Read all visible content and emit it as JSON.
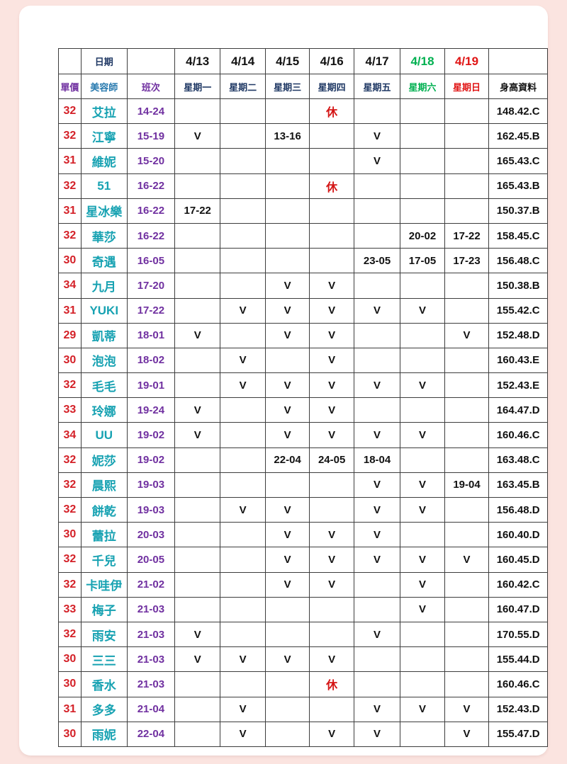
{
  "colors": {
    "page_background": "#fbe4e0",
    "card_background": "#ffffff",
    "grid_border": "#3d3d3d",
    "price_red": "#d42128",
    "name_teal": "#17a2b2",
    "shift_purple": "#7030a0",
    "header_navy": "#1f3864",
    "weekend_green": "#00b050",
    "weekend_red": "#e01414"
  },
  "header": {
    "date_label": "日期",
    "price_label": "單價",
    "beautician_label": "美容師",
    "shift_label": "班次",
    "height_label": "身高資料",
    "days": [
      {
        "date": "4/13",
        "weekday": "星期一",
        "color": "normal"
      },
      {
        "date": "4/14",
        "weekday": "星期二",
        "color": "normal"
      },
      {
        "date": "4/15",
        "weekday": "星期三",
        "color": "normal"
      },
      {
        "date": "4/16",
        "weekday": "星期四",
        "color": "normal"
      },
      {
        "date": "4/17",
        "weekday": "星期五",
        "color": "normal"
      },
      {
        "date": "4/18",
        "weekday": "星期六",
        "color": "green"
      },
      {
        "date": "4/19",
        "weekday": "星期日",
        "color": "red"
      }
    ]
  },
  "rows": [
    {
      "price": "32",
      "name": "艾拉",
      "shift": "14-24",
      "days": [
        "",
        "",
        "",
        "休",
        "",
        "",
        ""
      ],
      "height": "148.42.C"
    },
    {
      "price": "32",
      "name": "江寧",
      "shift": "15-19",
      "days": [
        "V",
        "",
        "13-16",
        "",
        "V",
        "",
        ""
      ],
      "height": "162.45.B"
    },
    {
      "price": "31",
      "name": "維妮",
      "shift": "15-20",
      "days": [
        "",
        "",
        "",
        "",
        "V",
        "",
        ""
      ],
      "height": "165.43.C"
    },
    {
      "price": "32",
      "name": "51",
      "shift": "16-22",
      "days": [
        "",
        "",
        "",
        "休",
        "",
        "",
        ""
      ],
      "height": "165.43.B"
    },
    {
      "price": "31",
      "name": "星冰樂",
      "shift": "16-22",
      "days": [
        "17-22",
        "",
        "",
        "",
        "",
        "",
        ""
      ],
      "height": "150.37.B"
    },
    {
      "price": "32",
      "name": "華莎",
      "shift": "16-22",
      "days": [
        "",
        "",
        "",
        "",
        "",
        "20-02",
        "17-22"
      ],
      "height": "158.45.C"
    },
    {
      "price": "30",
      "name": "奇遇",
      "shift": "16-05",
      "days": [
        "",
        "",
        "",
        "",
        "23-05",
        "17-05",
        "17-23"
      ],
      "height": "156.48.C"
    },
    {
      "price": "34",
      "name": "九月",
      "shift": "17-20",
      "days": [
        "",
        "",
        "V",
        "V",
        "",
        "",
        ""
      ],
      "height": "150.38.B"
    },
    {
      "price": "31",
      "name": "YUKI",
      "shift": "17-22",
      "days": [
        "",
        "V",
        "V",
        "V",
        "V",
        "V",
        ""
      ],
      "height": "155.42.C"
    },
    {
      "price": "29",
      "name": "凱蒂",
      "shift": "18-01",
      "days": [
        "V",
        "",
        "V",
        "V",
        "",
        "",
        "V"
      ],
      "height": "152.48.D"
    },
    {
      "price": "30",
      "name": "泡泡",
      "shift": "18-02",
      "days": [
        "",
        "V",
        "",
        "V",
        "",
        "",
        ""
      ],
      "height": "160.43.E"
    },
    {
      "price": "32",
      "name": "毛毛",
      "shift": "19-01",
      "days": [
        "",
        "V",
        "V",
        "V",
        "V",
        "V",
        ""
      ],
      "height": "152.43.E"
    },
    {
      "price": "33",
      "name": "玲娜",
      "shift": "19-24",
      "days": [
        "V",
        "",
        "V",
        "V",
        "",
        "",
        ""
      ],
      "height": "164.47.D"
    },
    {
      "price": "34",
      "name": "UU",
      "shift": "19-02",
      "days": [
        "V",
        "",
        "V",
        "V",
        "V",
        "V",
        ""
      ],
      "height": "160.46.C"
    },
    {
      "price": "32",
      "name": "妮莎",
      "shift": "19-02",
      "days": [
        "",
        "",
        "22-04",
        "24-05",
        "18-04",
        "",
        ""
      ],
      "height": "163.48.C"
    },
    {
      "price": "32",
      "name": "晨熙",
      "shift": "19-03",
      "days": [
        "",
        "",
        "",
        "",
        "V",
        "V",
        "19-04"
      ],
      "height": "163.45.B"
    },
    {
      "price": "32",
      "name": "餅乾",
      "shift": "19-03",
      "days": [
        "",
        "V",
        "V",
        "",
        "V",
        "V",
        ""
      ],
      "height": "156.48.D"
    },
    {
      "price": "30",
      "name": "蕾拉",
      "shift": "20-03",
      "days": [
        "",
        "",
        "V",
        "V",
        "V",
        "",
        ""
      ],
      "height": "160.40.D"
    },
    {
      "price": "32",
      "name": "千兒",
      "shift": "20-05",
      "days": [
        "",
        "",
        "V",
        "V",
        "V",
        "V",
        "V"
      ],
      "height": "160.45.D"
    },
    {
      "price": "32",
      "name": "卡哇伊",
      "shift": "21-02",
      "days": [
        "",
        "",
        "V",
        "V",
        "",
        "V",
        ""
      ],
      "height": "160.42.C"
    },
    {
      "price": "33",
      "name": "梅子",
      "shift": "21-03",
      "days": [
        "",
        "",
        "",
        "",
        "",
        "V",
        ""
      ],
      "height": "160.47.D"
    },
    {
      "price": "32",
      "name": "雨安",
      "shift": "21-03",
      "days": [
        "V",
        "",
        "",
        "",
        "V",
        "",
        ""
      ],
      "height": "170.55.D"
    },
    {
      "price": "30",
      "name": "三三",
      "shift": "21-03",
      "days": [
        "V",
        "V",
        "V",
        "V",
        "",
        "",
        ""
      ],
      "height": "155.44.D"
    },
    {
      "price": "30",
      "name": "香水",
      "shift": "21-03",
      "days": [
        "",
        "",
        "",
        "休",
        "",
        "",
        ""
      ],
      "height": "160.46.C"
    },
    {
      "price": "31",
      "name": "多多",
      "shift": "21-04",
      "days": [
        "",
        "V",
        "",
        "",
        "V",
        "V",
        "V"
      ],
      "height": "152.43.D"
    },
    {
      "price": "30",
      "name": "雨妮",
      "shift": "22-04",
      "days": [
        "",
        "V",
        "",
        "V",
        "V",
        "",
        "V"
      ],
      "height": "155.47.D"
    }
  ]
}
